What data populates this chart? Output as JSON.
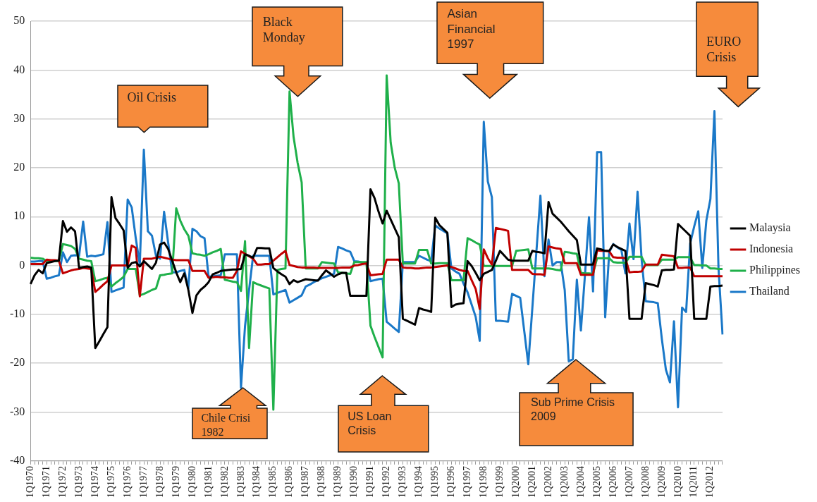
{
  "chart_data": {
    "type": "line",
    "annotations": [
      "Oil Crisis",
      "Black Monday",
      "Asian Financial 1997",
      "EURO Crisis",
      "Chile Crisi 1982",
      "US Loan Crisis",
      "Sub Prime Crisis 2009"
    ],
    "categories": [
      "1Q1970",
      null,
      null,
      null,
      "1Q1971",
      null,
      null,
      null,
      "1Q1972",
      null,
      null,
      null,
      "1Q1973",
      null,
      null,
      null,
      "1Q1974",
      null,
      null,
      null,
      "1Q1975",
      null,
      null,
      null,
      "1Q1976",
      null,
      null,
      null,
      "1Q1977",
      null,
      null,
      null,
      "1Q1978",
      null,
      null,
      null,
      "1Q1979",
      null,
      null,
      null,
      "1Q1980",
      null,
      null,
      null,
      "1Q1981",
      null,
      null,
      null,
      "1Q1982",
      null,
      null,
      null,
      "1Q1983",
      null,
      null,
      null,
      "1Q1984",
      null,
      null,
      null,
      "1Q1985",
      null,
      null,
      null,
      "1Q1986",
      null,
      null,
      null,
      "1Q1987",
      null,
      null,
      null,
      "1Q1988",
      null,
      null,
      null,
      "1Q1989",
      null,
      null,
      null,
      "1Q1990",
      null,
      null,
      null,
      "1Q1991",
      null,
      null,
      null,
      "1Q1992",
      null,
      null,
      null,
      "1Q1993",
      null,
      null,
      null,
      "1Q1994",
      null,
      null,
      null,
      "1Q1995",
      null,
      null,
      null,
      "1Q1996",
      null,
      null,
      null,
      "1Q1997",
      null,
      null,
      null,
      "1Q1998",
      null,
      null,
      null,
      "1Q1999",
      null,
      null,
      null,
      "1Q2000",
      null,
      null,
      null,
      "1Q2001",
      null,
      null,
      null,
      "1Q2002",
      null,
      null,
      null,
      "1Q2003",
      null,
      null,
      null,
      "1Q2004",
      null,
      null,
      null,
      "1Q2005",
      null,
      null,
      null,
      "1Q2006",
      null,
      null,
      null,
      "1Q2007",
      null,
      null,
      null,
      "1Q2008",
      null,
      null,
      null,
      "1Q2009",
      null,
      null,
      null,
      "1Q2010",
      null,
      null,
      null,
      "1Q2011",
      null,
      null,
      null,
      "1Q2012",
      null,
      null,
      null
    ],
    "ylim": [
      -40,
      50
    ],
    "yticks": [
      -40,
      -30,
      -20,
      -10,
      0,
      10,
      20,
      30,
      40,
      50
    ],
    "grid": "y",
    "legend": "right",
    "marker": "none",
    "line_style": "solid",
    "series": [
      {
        "name": "Malaysia",
        "color": "#000000",
        "values": [
          -3.8,
          -2.0,
          -0.9,
          -1.6,
          0.5,
          0.7,
          0.9,
          1.0,
          9.1,
          6.9,
          7.8,
          7.0,
          -0.5,
          -0.3,
          -0.2,
          -0.4,
          -16.9,
          -15.5,
          -14.0,
          -12.6,
          14.0,
          9.7,
          8.5,
          7.2,
          -0.5,
          0.5,
          0.7,
          -0.2,
          0.9,
          0.1,
          -0.7,
          0.6,
          4.3,
          4.7,
          3.4,
          1.0,
          -1.4,
          -3.4,
          -1.6,
          -5.0,
          -9.7,
          -6.1,
          -5.0,
          -4.3,
          -3.4,
          -1.8,
          -1.5,
          -1.1,
          -1.0,
          -0.9,
          -0.8,
          -0.8,
          -0.7,
          2.3,
          2.0,
          1.6,
          3.6,
          3.6,
          3.5,
          3.5,
          -0.5,
          -1.2,
          -1.8,
          -2.3,
          -3.8,
          -3.0,
          -3.4,
          -3.1,
          -2.8,
          -2.9,
          -3.0,
          -3.1,
          -2.0,
          -1.0,
          -1.6,
          -2.3,
          -1.8,
          -1.5,
          -1.5,
          -6.2,
          -6.2,
          -6.2,
          -6.2,
          -6.2,
          15.6,
          13.8,
          11.0,
          8.6,
          11.2,
          9.4,
          7.6,
          5.8,
          -10.9,
          -11.3,
          -11.7,
          -12.1,
          -8.7,
          -9.0,
          -9.2,
          -9.5,
          9.8,
          8.3,
          7.5,
          6.7,
          -8.5,
          -8.0,
          -7.8,
          -7.7,
          0.9,
          -0.1,
          -1.5,
          -3.0,
          -1.7,
          -1.3,
          -0.9,
          1.0,
          3.0,
          2.1,
          1.2,
          1.0,
          1.0,
          1.0,
          1.0,
          1.0,
          3.0,
          2.8,
          2.7,
          2.5,
          13.0,
          10.6,
          9.8,
          9.0,
          8.0,
          7.0,
          6.1,
          5.2,
          0.2,
          0.2,
          0.2,
          0.2,
          3.5,
          3.3,
          3.0,
          3.0,
          4.3,
          3.8,
          3.4,
          3.0,
          -10.9,
          -10.9,
          -10.9,
          -10.9,
          -3.6,
          -3.8,
          -4.0,
          -4.3,
          -1.0,
          -0.9,
          -0.9,
          -0.8,
          8.5,
          7.7,
          6.9,
          6.1,
          -10.9,
          -10.9,
          -10.9,
          -10.9,
          -4.3,
          -4.2,
          -4.2,
          -4.1
        ]
      },
      {
        "name": "Indonesia",
        "color": "#c00000",
        "values": [
          0.3,
          0.3,
          0.3,
          0.3,
          1.2,
          1.1,
          1.1,
          1.0,
          -1.6,
          -1.3,
          -1.0,
          -0.8,
          -0.7,
          -0.5,
          -0.6,
          -0.7,
          -5.4,
          -4.7,
          -3.9,
          -3.2,
          0,
          0,
          0,
          0,
          0,
          4.1,
          3.6,
          -6.3,
          1.4,
          1.4,
          1.4,
          1.6,
          1.8,
          1.6,
          1.4,
          1.2,
          1.1,
          1.1,
          1.1,
          1.1,
          -1.1,
          -1.1,
          -1.1,
          -1.1,
          -2.5,
          -2.4,
          -2.3,
          -2.4,
          -2.4,
          -2.5,
          -2.5,
          -1.1,
          2.9,
          2.4,
          1.9,
          1.4,
          0.2,
          0.2,
          0.3,
          0.3,
          1.0,
          1.7,
          2.4,
          3.0,
          0.1,
          -0.1,
          -0.3,
          -0.4,
          -0.4,
          -0.4,
          -0.4,
          -0.5,
          -0.5,
          -0.5,
          -0.5,
          -0.5,
          -0.5,
          -0.4,
          -0.4,
          -0.4,
          0,
          0.1,
          0.3,
          0.4,
          -2.0,
          -1.9,
          -1.8,
          -1.7,
          1.2,
          1.2,
          1.2,
          1.2,
          -0.4,
          -0.5,
          -0.5,
          -0.6,
          -0.6,
          -0.5,
          -0.4,
          -0.4,
          -0.3,
          -0.2,
          -0.1,
          0,
          -0.3,
          -0.6,
          -0.9,
          -1.1,
          -1.1,
          -3.0,
          -4.8,
          -8.9,
          3.3,
          1.5,
          0.2,
          7.7,
          7.5,
          7.3,
          7.1,
          -0.9,
          -0.9,
          -0.9,
          -0.9,
          -0.9,
          -1.7,
          -1.8,
          -1.8,
          -1.9,
          3.9,
          3.7,
          3.5,
          3.4,
          0.5,
          0.5,
          0.5,
          0.5,
          -1.9,
          -1.9,
          -1.9,
          -1.9,
          3.1,
          3.0,
          3.0,
          2.9,
          1.7,
          1.6,
          1.6,
          1.5,
          -1.4,
          -1.3,
          -1.3,
          -1.2,
          0.2,
          0.2,
          0.2,
          0.2,
          2.2,
          2.1,
          2.0,
          1.9,
          -0.5,
          -0.5,
          -0.4,
          -0.4,
          -2.2,
          -2.2,
          -2.2,
          -2.2,
          -2.2,
          -2.2,
          -2.2,
          -2.2
        ]
      },
      {
        "name": "Philippines",
        "color": "#1fb04a",
        "values": [
          1.6,
          1.5,
          1.5,
          1.4,
          0.9,
          0.9,
          0.9,
          0.9,
          4.4,
          4.2,
          4.0,
          3.4,
          1.4,
          1.2,
          1.0,
          0.9,
          -3.2,
          -3.0,
          -2.7,
          -2.5,
          -4.3,
          -3.6,
          -3.0,
          -2.3,
          -0.7,
          -0.7,
          -0.7,
          -6.1,
          -5.8,
          -5.4,
          -5.0,
          -4.7,
          -2.0,
          -1.9,
          -1.7,
          -1.6,
          11.7,
          9.2,
          7.4,
          6.1,
          2.5,
          2.3,
          2.2,
          2.0,
          2.3,
          2.7,
          3.0,
          3.4,
          -2.9,
          -3.1,
          -3.3,
          -3.4,
          -5.2,
          5.0,
          -16.9,
          -3.4,
          -3.8,
          -4.1,
          -4.4,
          -4.7,
          -29.5,
          -0.9,
          -0.7,
          -0.6,
          35.6,
          26.3,
          21.0,
          17.0,
          -0.6,
          -0.6,
          -0.6,
          -0.6,
          0.7,
          0.6,
          0.5,
          0.4,
          -1.4,
          -1.5,
          -1.6,
          -1.7,
          0.7,
          0.7,
          0.7,
          0.7,
          -12.3,
          -14.6,
          -16.7,
          -18.8,
          38.9,
          25.1,
          20.0,
          16.8,
          0.4,
          0.4,
          0.4,
          0.4,
          3.2,
          3.2,
          3.2,
          0.4,
          0.4,
          0.5,
          0.5,
          0.5,
          -3.0,
          -3.0,
          -3.0,
          -3.0,
          5.6,
          5.2,
          4.7,
          4.3,
          -0.1,
          -0.1,
          -0.1,
          -0.1,
          -0.1,
          -0.1,
          -0.1,
          -0.1,
          3.0,
          3.1,
          3.2,
          3.3,
          -0.6,
          -0.6,
          -0.6,
          -0.6,
          -0.6,
          -0.7,
          -0.9,
          -1.0,
          2.8,
          2.7,
          2.5,
          2.4,
          -1.5,
          -1.6,
          -1.6,
          -1.7,
          1.5,
          1.5,
          1.5,
          1.5,
          0.7,
          0.6,
          0.6,
          0.5,
          1.8,
          1.8,
          1.8,
          1.8,
          0.1,
          0.1,
          0.1,
          0.1,
          1.2,
          1.2,
          1.2,
          1.2,
          1.7,
          1.7,
          1.7,
          1.7,
          0.1,
          0.1,
          0,
          0,
          -0.6,
          -0.6,
          -0.7,
          -0.7
        ]
      },
      {
        "name": "Thailand",
        "color": "#1a78c8",
        "values": [
          0.8,
          0.8,
          0.9,
          0.9,
          -2.7,
          -2.5,
          -2.2,
          -2.0,
          2.7,
          0.7,
          2.0,
          2.1,
          2.0,
          9.0,
          1.8,
          2.0,
          1.9,
          2.1,
          2.3,
          8.9,
          -5.4,
          -5.1,
          -4.8,
          -4.5,
          13.5,
          11.9,
          5.6,
          0.2,
          23.7,
          7.0,
          6.1,
          2.0,
          1.4,
          11.0,
          4.7,
          -1.4,
          -1.4,
          -1.1,
          -0.9,
          -4.7,
          7.5,
          7.0,
          6.0,
          5.6,
          -2.3,
          -2.2,
          -2.1,
          -2.0,
          2.3,
          2.3,
          2.3,
          2.3,
          -25.0,
          -12.4,
          -5.0,
          2.0,
          2.0,
          2.0,
          2.0,
          2.0,
          -5.9,
          -5.6,
          -5.3,
          -5.0,
          -7.6,
          -7.1,
          -6.6,
          -6.1,
          -4.3,
          -3.9,
          -3.4,
          -3.0,
          -2.6,
          -2.3,
          -2.0,
          -1.7,
          3.8,
          3.5,
          3.1,
          2.8,
          0.9,
          0.8,
          0.6,
          0.5,
          -3.2,
          -3.0,
          -2.8,
          -2.7,
          -11.5,
          -12.2,
          -12.9,
          -13.6,
          0.7,
          0.7,
          0.7,
          0.7,
          2.0,
          1.6,
          1.2,
          0.9,
          8.2,
          7.6,
          7.1,
          6.6,
          -0.6,
          -1.2,
          -1.7,
          -3.7,
          -5.5,
          -8.0,
          -10.5,
          -15.4,
          29.4,
          17.2,
          14.0,
          -11.3,
          -11.3,
          -11.4,
          -11.5,
          -5.8,
          -6.2,
          -6.6,
          -13.4,
          -20.2,
          -8.7,
          2.8,
          14.3,
          -2.2,
          5.3,
          0.0,
          0.7,
          0.7,
          -5.0,
          -19.6,
          -19.2,
          -2.9,
          -13.3,
          -2.0,
          9.9,
          -5.3,
          23.2,
          23.2,
          -10.6,
          2.7,
          4.4,
          3.7,
          3.2,
          -1.6,
          8.6,
          1.3,
          15.1,
          1.3,
          -7.3,
          -7.4,
          -7.5,
          -7.7,
          -15.0,
          -21.3,
          -23.9,
          -11.4,
          -29.0,
          -8.6,
          -9.5,
          4.5,
          8.0,
          11.1,
          -0.5,
          9.2,
          13.6,
          31.6,
          -0.5,
          -14.1
        ]
      }
    ]
  }
}
